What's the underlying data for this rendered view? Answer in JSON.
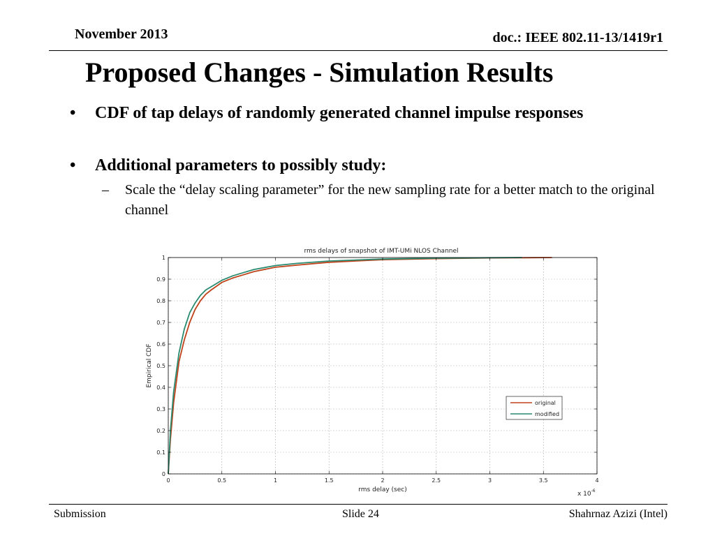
{
  "header": {
    "date": "November 2013",
    "doc_id": "doc.: IEEE 802.11-13/1419r1"
  },
  "slide": {
    "title": "Proposed Changes - Simulation Results",
    "bullets": [
      {
        "marker": "•",
        "text": "CDF of tap delays of randomly generated channel impulse responses"
      },
      {
        "marker": "•",
        "text": "Additional parameters to possibly study:"
      }
    ],
    "sub_bullets": [
      {
        "marker": "–",
        "text": "Scale the “delay scaling parameter” for the new sampling rate for a better match to the original channel"
      }
    ]
  },
  "footer": {
    "left": "Submission",
    "center": "Slide 24",
    "right": "Shahrnaz Azizi (Intel)"
  },
  "chart_data": {
    "type": "line",
    "title": "rms delays of snapshot of IMT-UMi NLOS Channel",
    "xlabel": "rms delay (sec)",
    "ylabel": "Empirical CDF",
    "x_exponent_label": "x 10",
    "x_exponent_power": "-6",
    "xlim": [
      0,
      4
    ],
    "ylim": [
      0,
      1
    ],
    "x_ticks": [
      "0",
      "0.5",
      "1",
      "1.5",
      "2",
      "2.5",
      "3",
      "3.5",
      "4"
    ],
    "y_ticks": [
      "0",
      "0.1",
      "0.2",
      "0.3",
      "0.4",
      "0.5",
      "0.6",
      "0.7",
      "0.8",
      "0.9",
      "1"
    ],
    "grid": true,
    "legend_position": "lower-right",
    "series": [
      {
        "name": "original",
        "color": "#c0421a",
        "x": [
          0,
          0.02,
          0.05,
          0.1,
          0.15,
          0.2,
          0.25,
          0.3,
          0.35,
          0.4,
          0.5,
          0.6,
          0.7,
          0.8,
          1.0,
          1.2,
          1.5,
          2.0,
          2.5,
          3.0,
          3.58
        ],
        "y": [
          0,
          0.16,
          0.33,
          0.52,
          0.62,
          0.7,
          0.76,
          0.8,
          0.83,
          0.85,
          0.885,
          0.905,
          0.92,
          0.935,
          0.955,
          0.965,
          0.978,
          0.99,
          0.995,
          0.998,
          1.0
        ]
      },
      {
        "name": "modified",
        "color": "#2a8a70",
        "x": [
          0,
          0.02,
          0.05,
          0.1,
          0.15,
          0.2,
          0.25,
          0.3,
          0.35,
          0.4,
          0.5,
          0.6,
          0.7,
          0.8,
          1.0,
          1.2,
          1.5,
          2.0,
          2.5,
          3.0,
          3.3
        ],
        "y": [
          0,
          0.2,
          0.38,
          0.56,
          0.67,
          0.745,
          0.79,
          0.825,
          0.85,
          0.865,
          0.895,
          0.915,
          0.93,
          0.945,
          0.963,
          0.973,
          0.984,
          0.993,
          0.997,
          0.999,
          1.0
        ]
      }
    ]
  }
}
